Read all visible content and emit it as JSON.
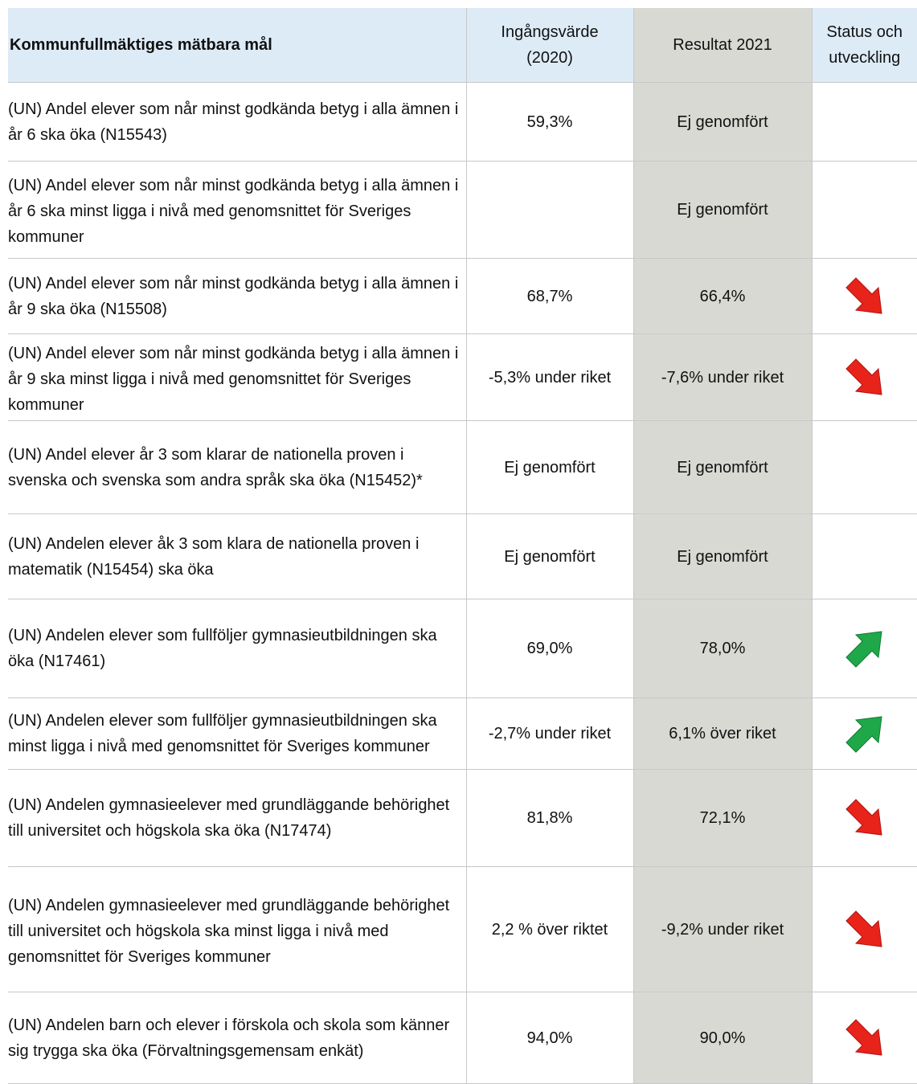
{
  "header": {
    "goal": "Kommunfullmäktiges mätbara mål",
    "baseline": "Ingångsvärde (2020)",
    "result": "Resultat 2021",
    "status": "Status och utveckling"
  },
  "rows": [
    {
      "goal": "(UN) Andel elever som når minst godkända betyg i alla ämnen i år 6 ska öka (N15543)",
      "baseline": "59,3%",
      "result": "Ej genomfört"
    },
    {
      "goal": "(UN) Andel elever som når minst godkända betyg i alla ämnen i år 6 ska minst ligga i nivå med genomsnittet för Sveriges kommuner",
      "result": "Ej genomfört"
    },
    {
      "goal": "(UN) Andel elever som når minst godkända betyg i alla ämnen i år 9 ska öka (N15508)",
      "baseline": "68,7%",
      "result": "66,4%"
    },
    {
      "goal": "(UN) Andel elever som når minst godkända betyg i alla ämnen i år 9 ska minst ligga i nivå med genomsnittet för Sveriges kommuner",
      "baseline": "-5,3% under riket",
      "result": "-7,6% under riket"
    },
    {
      "goal": "(UN) Andel elever år 3 som klarar de nationella proven i svenska och svenska som andra språk ska öka (N15452)*",
      "baseline": "Ej genomfört",
      "result": "Ej genomfört"
    },
    {
      "goal": "(UN) Andelen elever åk 3 som klara de nationella proven i matematik (N15454) ska öka",
      "baseline": "Ej genomfört",
      "result": "Ej genomfört"
    },
    {
      "goal": "(UN) Andelen elever som fullföljer gymnasieutbildningen ska öka (N17461)",
      "baseline": "69,0%",
      "result": "78,0%"
    },
    {
      "goal": "(UN) Andelen elever som fullföljer gymnasieutbildningen ska minst ligga i nivå med genomsnittet för Sveriges kommuner",
      "baseline": "-2,7% under riket",
      "result": "6,1% över riket"
    },
    {
      "goal": "(UN) Andelen gymnasieelever med grundläggande behörighet till universitet och högskola ska öka (N17474)",
      "baseline": "81,8%",
      "result": "72,1%"
    },
    {
      "goal": "(UN) Andelen gymnasieelever med grundläggande behörighet till universitet och högskola ska minst ligga i nivå med genomsnittet för Sveriges kommuner",
      "baseline": "2,2 % över riktet",
      "result": "-9,2% under riket"
    },
    {
      "goal": "(UN) Andelen barn och elever i förskola och skola som känner sig trygga ska öka (Förvaltningsgemensam enkät)",
      "baseline": "94,0%",
      "result": "90,0%"
    }
  ]
}
